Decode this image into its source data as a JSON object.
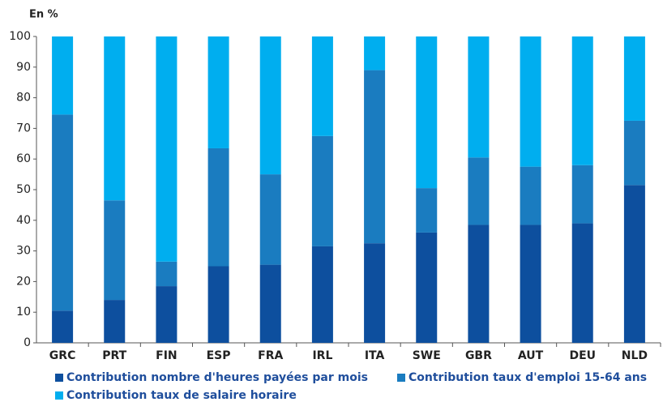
{
  "chart_data": {
    "type": "stacked_bar",
    "y_label": "En %",
    "categories": [
      "GRC",
      "PRT",
      "FIN",
      "ESP",
      "FRA",
      "IRL",
      "ITA",
      "SWE",
      "GBR",
      "AUT",
      "DEU",
      "NLD"
    ],
    "series": [
      {
        "name": "Contribution nombre d'heures payées par mois",
        "color": "#0d4f9e",
        "values": [
          10.5,
          14,
          18.5,
          25,
          25.5,
          31.5,
          32.5,
          36,
          38.5,
          38.5,
          39,
          51.5
        ]
      },
      {
        "name": "Contribution taux d'emploi 15-64 ans",
        "color": "#1a7cc0",
        "values": [
          64,
          32.5,
          8,
          38.5,
          29.5,
          36,
          56.5,
          14.5,
          22,
          19,
          19,
          21
        ]
      },
      {
        "name": "Contribution taux de salaire horaire",
        "color": "#00aeef",
        "values": [
          25.5,
          53.5,
          73.5,
          36.5,
          45,
          32.5,
          11,
          49.5,
          39.5,
          42.5,
          42,
          27.5
        ]
      }
    ],
    "ylim": [
      0,
      100
    ],
    "yticks": [
      0,
      10,
      20,
      30,
      40,
      50,
      60,
      70,
      80,
      90,
      100
    ],
    "grid": false
  }
}
